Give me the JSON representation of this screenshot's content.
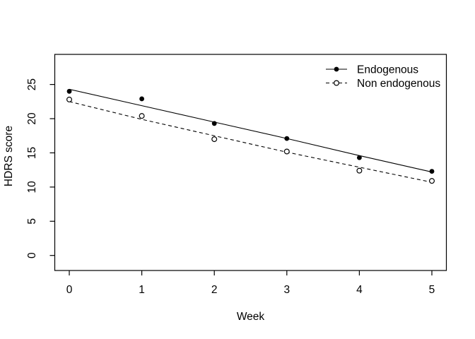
{
  "figure": {
    "background_color": "#ffffff",
    "foreground_color": "#000000"
  },
  "chart_data": {
    "type": "line",
    "title": "",
    "xlabel": "Week",
    "ylabel": "HDRS score",
    "x": [
      0,
      1,
      2,
      3,
      4,
      5
    ],
    "xticks": [
      "0",
      "1",
      "2",
      "3",
      "4",
      "5"
    ],
    "yticks": [
      "0",
      "5",
      "10",
      "15",
      "20",
      "25"
    ],
    "xtick_values": [
      0,
      1,
      2,
      3,
      4,
      5
    ],
    "ytick_values": [
      0,
      5,
      10,
      15,
      20,
      25
    ],
    "xlim": [
      -0.2,
      5.2
    ],
    "ylim": [
      -2.2,
      29.4
    ],
    "grid": false,
    "legend_position": "top-right",
    "legend_box": false,
    "series": [
      {
        "name": "Endogenous",
        "marker": "filled-circle",
        "line_style": "solid",
        "color": "#000000",
        "observed": [
          24.0,
          22.9,
          19.3,
          17.1,
          14.3,
          12.3
        ],
        "fitted": [
          24.3,
          21.9,
          19.5,
          17.1,
          14.6,
          12.2
        ]
      },
      {
        "name": "Non endogenous",
        "marker": "open-circle",
        "line_style": "dashed",
        "color": "#000000",
        "observed": [
          22.8,
          20.4,
          17.0,
          15.2,
          12.4,
          10.9
        ],
        "fitted": [
          22.5,
          19.9,
          17.5,
          15.1,
          12.9,
          10.7
        ]
      }
    ]
  }
}
